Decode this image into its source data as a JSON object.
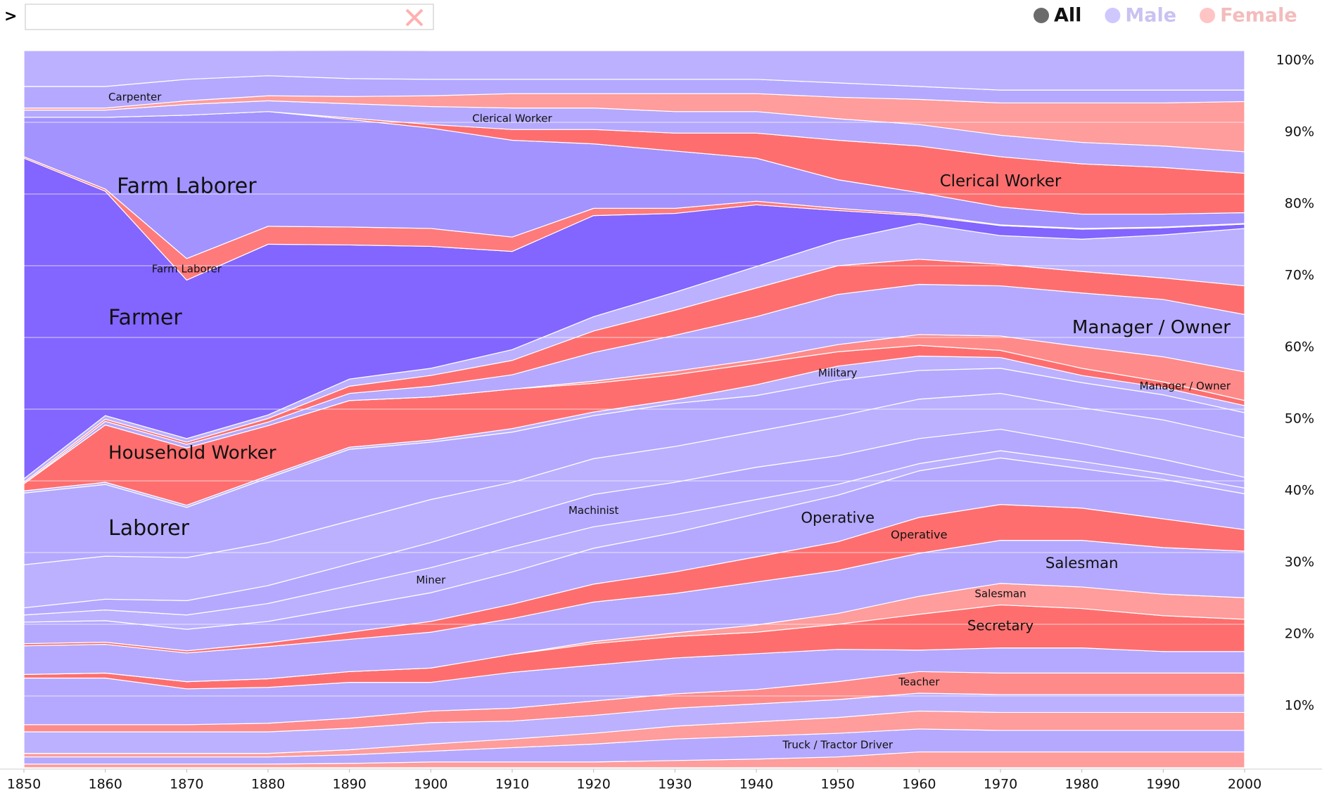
{
  "search": {
    "prompt": ">"
  },
  "legend": [
    {
      "label": "All",
      "color": "#6b6b6b",
      "text_color": "#111111"
    },
    {
      "label": "Male",
      "color": "#cfc8ff",
      "text_color": "#c9c2f2"
    },
    {
      "label": "Female",
      "color": "#ffc4c4",
      "text_color": "#f3bcbc"
    }
  ],
  "chart_data": {
    "type": "stacked-area",
    "x": [
      1850,
      1860,
      1870,
      1880,
      1890,
      1900,
      1910,
      1920,
      1930,
      1940,
      1950,
      1960,
      1970,
      1980,
      1990,
      2000
    ],
    "xlim": [
      1850,
      2000
    ],
    "xticks": [
      1850,
      1860,
      1870,
      1880,
      1890,
      1900,
      1910,
      1920,
      1930,
      1940,
      1950,
      1960,
      1970,
      1980,
      1990,
      2000
    ],
    "ylim": [
      0,
      100
    ],
    "yticks": [
      {
        "value": 10,
        "label": "10%"
      },
      {
        "value": 20,
        "label": "20%"
      },
      {
        "value": 30,
        "label": "30%"
      },
      {
        "value": 40,
        "label": "40%"
      },
      {
        "value": 50,
        "label": "50%"
      },
      {
        "value": 60,
        "label": "60%"
      },
      {
        "value": 70,
        "label": "70%"
      },
      {
        "value": 80,
        "label": "80%"
      },
      {
        "value": 90,
        "label": "90%"
      },
      {
        "value": 100,
        "label": "100%"
      }
    ],
    "grid": true,
    "series": [
      {
        "color": "#ff9c9c",
        "values": [
          0.5,
          0.5,
          0.5,
          0.5,
          0.6,
          0.8,
          0.8,
          0.8,
          1,
          1.2,
          1.5,
          2.2,
          2.2,
          2.2,
          2.2,
          2.2
        ]
      },
      {
        "name": "Truck / Tractor Driver",
        "color": "#b4a9ff",
        "values": [
          1,
          1,
          1,
          1,
          1.2,
          1.5,
          2,
          2.5,
          3,
          3.2,
          3.3,
          3.2,
          3,
          3,
          3,
          3
        ]
      },
      {
        "color": "#ff9c9c",
        "values": [
          0.5,
          0.5,
          0.5,
          0.5,
          0.7,
          1,
          1.2,
          1.5,
          1.8,
          2,
          2.2,
          2.5,
          2.5,
          2.5,
          2.5,
          2.5
        ]
      },
      {
        "color": "#bbb1ff",
        "values": [
          3,
          3,
          3,
          3,
          3,
          3,
          2.5,
          2.5,
          2.5,
          2.5,
          2.5,
          2.5,
          2.5,
          2.5,
          2.5,
          2.5
        ]
      },
      {
        "name": "Teacher",
        "color": "#ff8a8a",
        "values": [
          1,
          1,
          1,
          1.2,
          1.4,
          1.6,
          1.8,
          2,
          2,
          2,
          2.5,
          3,
          3,
          3,
          3,
          3
        ]
      },
      {
        "color": "#b4a9ff",
        "values": [
          6.5,
          6.5,
          5,
          5,
          5,
          4,
          5,
          5,
          5,
          5,
          4.5,
          3,
          3.5,
          3.5,
          3,
          3
        ]
      },
      {
        "name": "Secretary",
        "color": "#ff6e6e",
        "values": [
          0.5,
          0.7,
          1,
          1.2,
          1.5,
          2,
          2.5,
          3,
          3,
          3,
          3.5,
          5,
          6,
          5.5,
          5,
          4.5
        ]
      },
      {
        "name": "Salesman",
        "color": "#ff9c9c",
        "values": [
          0,
          0,
          0,
          0,
          0,
          0,
          0,
          0.3,
          0.5,
          1,
          1.5,
          2.5,
          3,
          3,
          3,
          3
        ]
      },
      {
        "name": "Salesman",
        "color": "#b4a9ff",
        "values": [
          4,
          4,
          4,
          4.5,
          4.5,
          5,
          5,
          5.5,
          5.5,
          6,
          6,
          6,
          6,
          6.5,
          6.5,
          6.5
        ]
      },
      {
        "name": "Operative",
        "color": "#ff6e6e",
        "values": [
          0.3,
          0.3,
          0.3,
          0.5,
          1,
          1.5,
          2,
          2.5,
          3,
          3.5,
          4,
          5,
          5,
          4.5,
          4,
          3
        ]
      },
      {
        "name": "Operative",
        "color": "#b4a9ff",
        "values": [
          3,
          3,
          3,
          3,
          3.5,
          4,
          4.5,
          5,
          5.5,
          6,
          6.5,
          6.5,
          6.5,
          5.5,
          5.5,
          5
        ]
      },
      {
        "name": "Miner",
        "color": "#bbb1ff",
        "values": [
          1,
          1.5,
          2,
          2.5,
          3,
          3.5,
          3.5,
          3,
          2.5,
          2,
          1.5,
          1,
          1,
          1,
          0.8,
          0.8
        ]
      },
      {
        "name": "Machinist",
        "color": "#b4a9ff",
        "values": [
          1,
          1.5,
          2,
          2.5,
          3,
          3.5,
          4,
          4.5,
          4.5,
          4.5,
          4,
          3.5,
          3,
          2.5,
          2,
          1.5
        ]
      },
      {
        "color": "#bbb1ff",
        "values": [
          6,
          6,
          6,
          6,
          6,
          6,
          5,
          5,
          5,
          5,
          5.5,
          5.5,
          5,
          5,
          5.5,
          5.5
        ]
      },
      {
        "name": "Laborer",
        "color": "#b4a9ff",
        "values": [
          10,
          10,
          7,
          9,
          10,
          8,
          7,
          6,
          6,
          5,
          5,
          4,
          3.5,
          3.5,
          3.5,
          3.5
        ]
      },
      {
        "name": "Military",
        "color": "#bbb1ff",
        "values": [
          0.3,
          0.3,
          0.3,
          0.3,
          0.3,
          0.3,
          0.5,
          0.5,
          0.5,
          1.5,
          2,
          2,
          1.5,
          1,
          1,
          1
        ]
      },
      {
        "name": "Household Worker",
        "color": "#ff6e6e",
        "values": [
          1,
          8,
          8,
          7,
          6.5,
          6,
          5.5,
          4,
          3.5,
          3,
          2,
          1.5,
          1,
          1,
          0.8,
          0.7
        ]
      },
      {
        "name": "Manager / Owner",
        "color": "#ff8a8a",
        "values": [
          0,
          0,
          0,
          0,
          0,
          0,
          0,
          0.3,
          0.5,
          0.5,
          1,
          1.5,
          2,
          3,
          3.5,
          4
        ]
      },
      {
        "name": "Manager / Owner",
        "color": "#b4a9ff",
        "values": [
          0,
          0.5,
          0.5,
          0.5,
          1,
          1.5,
          2,
          4,
          5,
          6,
          7,
          7,
          7,
          7.5,
          8,
          8
        ]
      },
      {
        "color": "#ff6e6e",
        "values": [
          0.2,
          0.3,
          0.3,
          0.5,
          1,
          1.5,
          2,
          3,
          3.5,
          4,
          4,
          3.5,
          3,
          3,
          3,
          4
        ]
      },
      {
        "color": "#bbb1ff",
        "values": [
          0.5,
          0.5,
          0.5,
          0.5,
          1,
          1,
          1.5,
          2,
          2.5,
          3,
          3.5,
          5,
          4,
          4.5,
          6,
          8
        ]
      },
      {
        "name": "Farmer",
        "color": "#8365ff",
        "values": [
          44.7,
          31.3,
          22.1,
          23.8,
          18.7,
          17.0,
          13.7,
          14.1,
          11.0,
          8.6,
          4.2,
          1.1,
          1.4,
          1.4,
          1.0,
          0.6
        ]
      },
      {
        "name": "Farm Laborer",
        "color": "#ff7a7a",
        "values": [
          0.2,
          0.3,
          3,
          2.5,
          2.5,
          2.5,
          2,
          1,
          0.7,
          0.5,
          0.3,
          0.2,
          0.1,
          0.1,
          0.1,
          0.1
        ]
      },
      {
        "name": "Farm Laborer",
        "color": "#a293ff",
        "values": [
          5.5,
          10,
          20,
          16,
          15,
          14,
          13.5,
          9,
          8,
          6,
          4,
          3,
          2.5,
          2,
          1.8,
          1.5
        ]
      },
      {
        "name": "Clerical Worker",
        "color": "#ff6e6e",
        "values": [
          0,
          0,
          0,
          0,
          0.2,
          0.5,
          1.5,
          2,
          2.5,
          3.5,
          5.5,
          6.5,
          7,
          7,
          6.5,
          5.5
        ]
      },
      {
        "name": "Clerical Worker",
        "color": "#b4a9ff",
        "values": [
          1,
          1,
          1.5,
          1.5,
          2,
          2.5,
          3,
          3,
          3,
          3,
          3,
          3,
          3,
          3,
          3,
          3
        ]
      },
      {
        "color": "#ff9c9c",
        "values": [
          0.3,
          0.3,
          0.5,
          0.7,
          1,
          1.5,
          2,
          2,
          2.5,
          2.5,
          3,
          3.5,
          4.5,
          5.5,
          6,
          7
        ]
      },
      {
        "name": "Carpenter",
        "color": "#b4a9ff",
        "values": [
          3,
          3,
          3,
          2.8,
          2.5,
          2.3,
          2,
          2,
          2,
          2,
          2,
          1.8,
          1.8,
          1.8,
          1.8,
          1.6
        ]
      },
      {
        "color": "#bbb1ff",
        "values": [
          5,
          5,
          4,
          3.5,
          4,
          4,
          4,
          4,
          4,
          4,
          4.5,
          5,
          5.5,
          5.5,
          5.5,
          5.5
        ]
      }
    ]
  }
}
